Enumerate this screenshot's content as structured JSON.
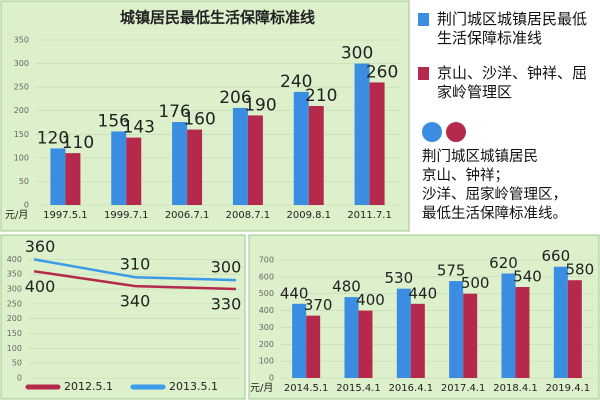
{
  "chart_data": [
    {
      "type": "bar",
      "title": "城镇居民最低生活保障标准线",
      "unit": "元/月",
      "categories": [
        "1997.5.1",
        "1999.7.1",
        "2006.7.1",
        "2008.7.1",
        "2009.8.1",
        "2011.7.1"
      ],
      "series": [
        {
          "name": "荆门城区城镇居民最低生活保障标准线",
          "color": "#3a8de0",
          "values": [
            120,
            156,
            176,
            206,
            240,
            300
          ]
        },
        {
          "name": "京山、沙洋、钟祥、屈家岭管理区",
          "color": "#b52a4c",
          "values": [
            110,
            143,
            160,
            190,
            210,
            260
          ]
        }
      ],
      "ylim": [
        0,
        350
      ],
      "yticks": [
        0,
        50,
        100,
        150,
        200,
        250,
        300,
        350
      ],
      "grid": true
    },
    {
      "type": "line",
      "categories": [
        null,
        null,
        null
      ],
      "series": [
        {
          "name": "2012.5.1",
          "color": "#b52a4c",
          "values": [
            360,
            310,
            300
          ]
        },
        {
          "name": "2013.5.1",
          "color": "#3a9be8",
          "values": [
            400,
            340,
            330
          ]
        }
      ],
      "ylim": [
        0,
        425
      ],
      "yticks": [
        0,
        50,
        100,
        150,
        200,
        250,
        300,
        350,
        400
      ],
      "grid": true,
      "legend": "bottom"
    },
    {
      "type": "bar",
      "unit": "元/月",
      "categories": [
        "2014.5.1",
        "2015.4.1",
        "2016.4.1",
        "2017.4.1",
        "2018.4.1",
        "2019.4.1"
      ],
      "series": [
        {
          "color": "#3a8de0",
          "values": [
            440,
            480,
            530,
            575,
            620,
            660
          ]
        },
        {
          "color": "#b52a4c",
          "values": [
            370,
            400,
            440,
            500,
            540,
            580
          ]
        }
      ],
      "ylim": [
        0,
        700
      ],
      "yticks": [
        0,
        100,
        200,
        300,
        400,
        500,
        600,
        700
      ],
      "grid": true
    }
  ],
  "note": [
    "荆门城区城镇居民",
    "京山、钟祥；",
    "沙洋、屈家岭管理区，",
    "最低生活保障标准线。"
  ]
}
